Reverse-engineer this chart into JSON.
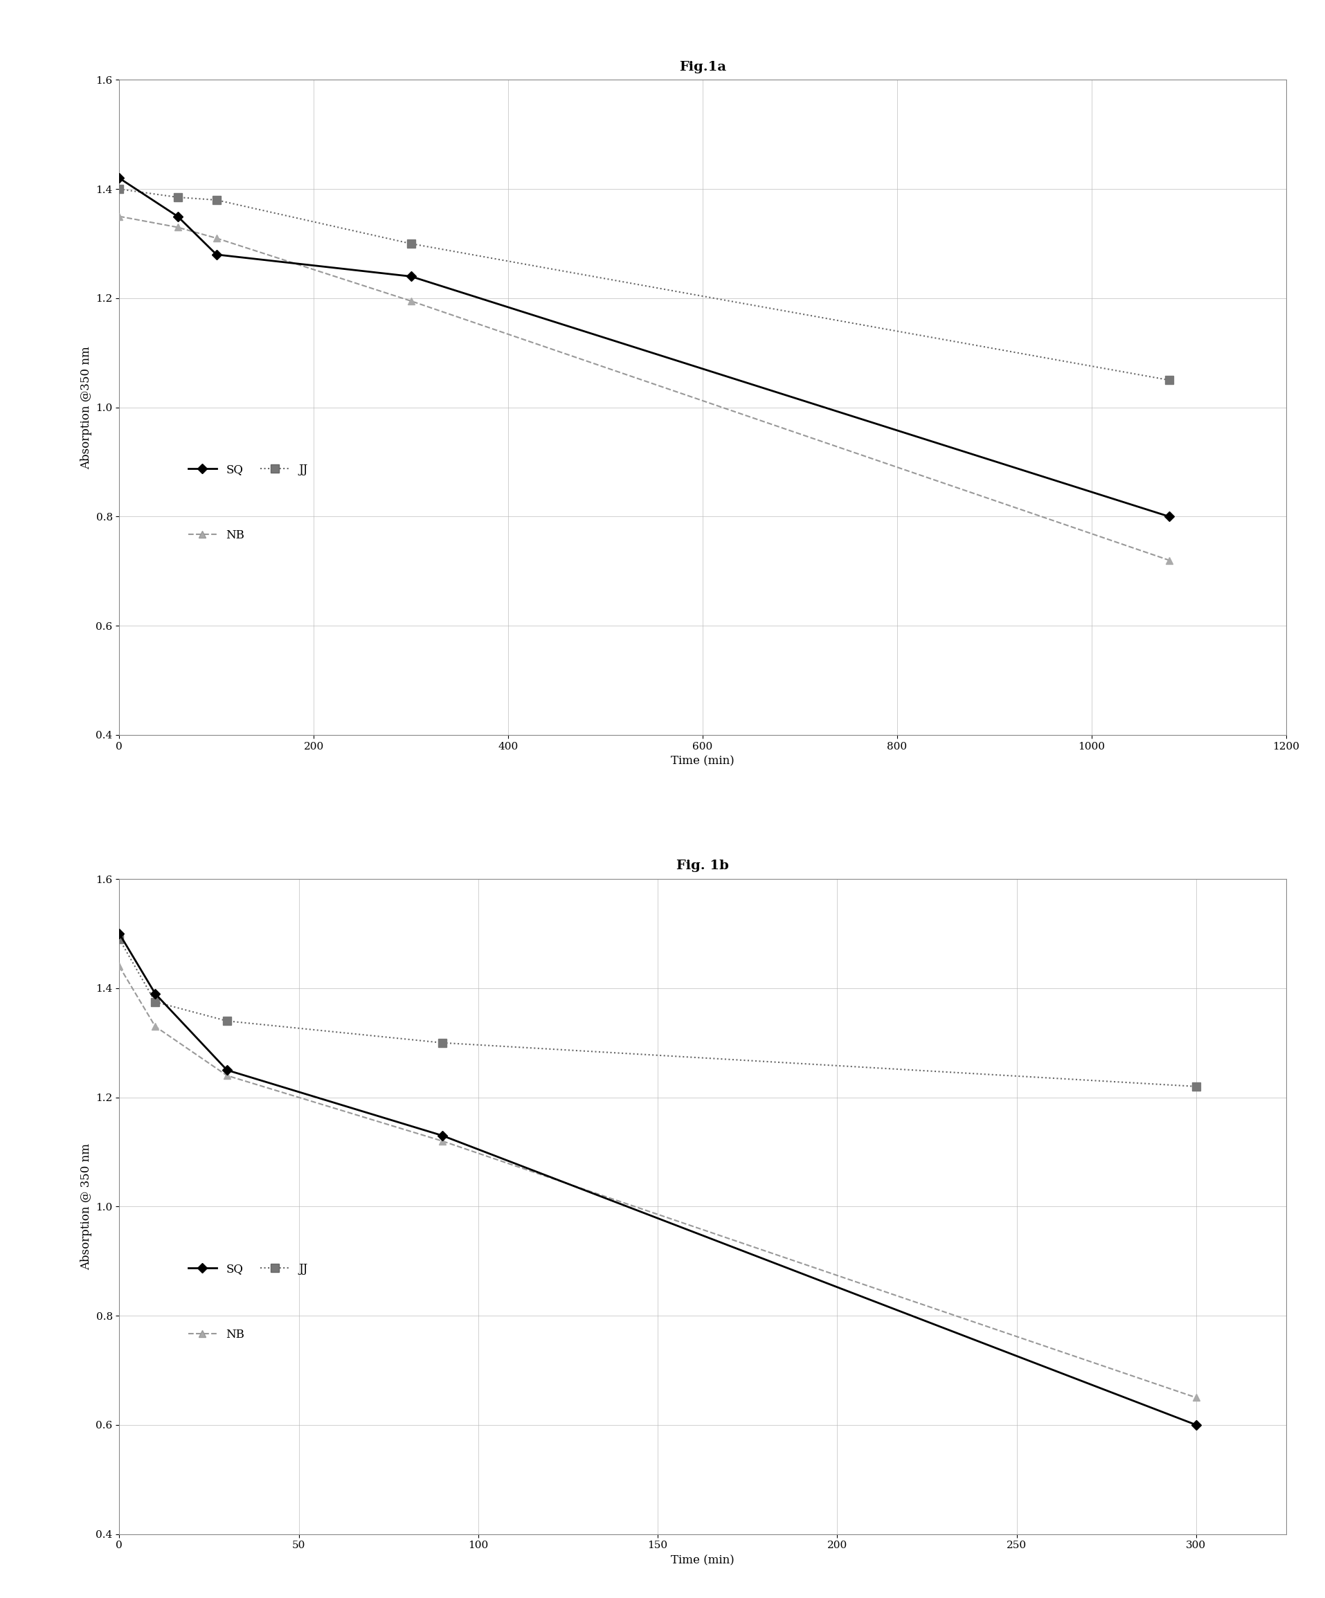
{
  "fig1a_title": "Fig.1a",
  "fig1b_title": "Fig. 1b",
  "fig1a": {
    "SQ_x": [
      0,
      60,
      100,
      300,
      1080
    ],
    "SQ_y": [
      1.42,
      1.35,
      1.28,
      1.24,
      0.8
    ],
    "JJ_x": [
      0,
      60,
      100,
      300,
      1080
    ],
    "JJ_y": [
      1.4,
      1.385,
      1.38,
      1.3,
      1.05
    ],
    "NB_x": [
      0,
      60,
      100,
      300,
      1080
    ],
    "NB_y": [
      1.35,
      1.33,
      1.31,
      1.195,
      0.72
    ],
    "xlabel": "Time (min)",
    "ylabel": "Absorption @350 nm",
    "xlim": [
      0,
      1200
    ],
    "ylim": [
      0.4,
      1.6
    ],
    "yticks": [
      0.4,
      0.6,
      0.8,
      1.0,
      1.2,
      1.4,
      1.6
    ],
    "xticks": [
      0,
      200,
      400,
      600,
      800,
      1000,
      1200
    ]
  },
  "fig1b": {
    "SQ_x": [
      0,
      10,
      30,
      90,
      300
    ],
    "SQ_y": [
      1.5,
      1.39,
      1.25,
      1.13,
      0.6
    ],
    "JJ_x": [
      0,
      10,
      30,
      90,
      300
    ],
    "JJ_y": [
      1.49,
      1.375,
      1.34,
      1.3,
      1.22
    ],
    "NB_x": [
      0,
      10,
      30,
      90,
      300
    ],
    "NB_y": [
      1.44,
      1.33,
      1.24,
      1.12,
      0.65
    ],
    "xlabel": "Time (min)",
    "ylabel": "Absorption @ 350 nm",
    "xlim": [
      0,
      325
    ],
    "ylim": [
      0.4,
      1.6
    ],
    "yticks": [
      0.4,
      0.6,
      0.8,
      1.0,
      1.2,
      1.4,
      1.6
    ],
    "xticks": [
      0,
      50,
      100,
      150,
      200,
      250,
      300
    ]
  },
  "SQ_color": "#000000",
  "JJ_color": "#666666",
  "NB_color": "#999999",
  "background_color": "#ffffff",
  "grid_color": "#bbbbbb",
  "fig1a_title_fontsize": 14,
  "fig1b_title_fontsize": 14,
  "axis_label_fontsize": 12,
  "tick_fontsize": 11,
  "legend_fontsize": 12
}
